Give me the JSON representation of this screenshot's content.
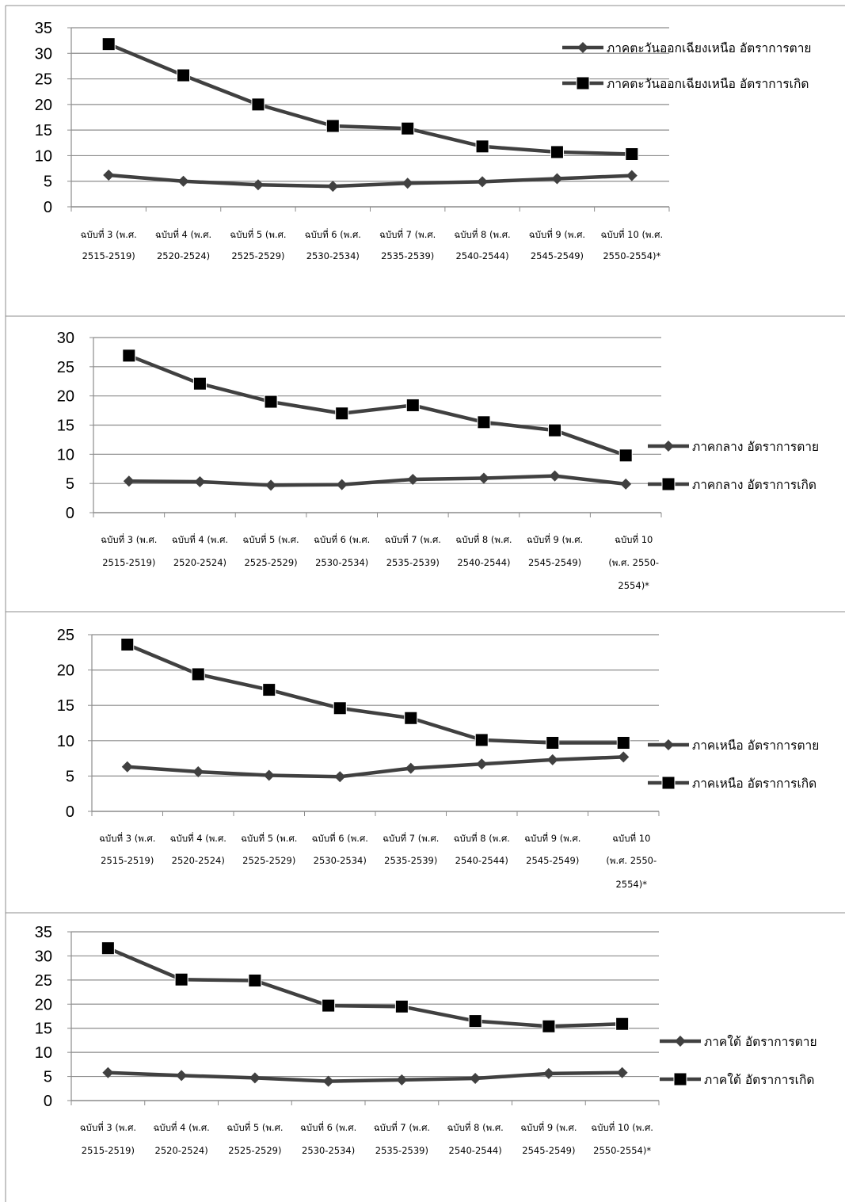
{
  "colors": {
    "series_line": "#404040",
    "grid": "#8c8c8c",
    "marker": "#000000",
    "panel_border": "#8c8c8c"
  },
  "chart_data": [
    {
      "type": "line",
      "categories": [
        [
          "ฉบับที่ 3 (พ.ศ.",
          "2515-2519)"
        ],
        [
          "ฉบับที่ 4 (พ.ศ.",
          "2520-2524)"
        ],
        [
          "ฉบับที่ 5 (พ.ศ.",
          "2525-2529)"
        ],
        [
          "ฉบับที่ 6 (พ.ศ.",
          "2530-2534)"
        ],
        [
          "ฉบับที่ 7 (พ.ศ.",
          "2535-2539)"
        ],
        [
          "ฉบับที่ 8 (พ.ศ.",
          "2540-2544)"
        ],
        [
          "ฉบับที่ 9 (พ.ศ.",
          "2545-2549)"
        ],
        [
          "ฉบับที่ 10 (พ.ศ.",
          "2550-2554)*"
        ]
      ],
      "ylim": [
        0,
        35
      ],
      "yticks": [
        0,
        5,
        10,
        15,
        20,
        25,
        30,
        35
      ],
      "grid": true,
      "legend_position": "top-right",
      "series": [
        {
          "name": "ภาคตะวันออกเฉียงเหนือ อัตราการตาย",
          "marker": "diamond",
          "values": [
            6.2,
            5.0,
            4.3,
            4.0,
            4.6,
            4.9,
            5.5,
            6.1
          ]
        },
        {
          "name": "ภาคตะวันออกเฉียงเหนือ อัตราการเกิด",
          "marker": "square",
          "values": [
            31.8,
            25.7,
            20.0,
            15.8,
            15.3,
            11.8,
            10.7,
            10.3
          ]
        }
      ]
    },
    {
      "type": "line",
      "categories": [
        [
          "ฉบับที่ 3 (พ.ศ.",
          "2515-2519)"
        ],
        [
          "ฉบับที่ 4 (พ.ศ.",
          "2520-2524)"
        ],
        [
          "ฉบับที่ 5 (พ.ศ.",
          "2525-2529)"
        ],
        [
          "ฉบับที่ 6 (พ.ศ.",
          "2530-2534)"
        ],
        [
          "ฉบับที่ 7 (พ.ศ.",
          "2535-2539)"
        ],
        [
          "ฉบับที่ 8 (พ.ศ.",
          "2540-2544)"
        ],
        [
          "ฉบับที่ 9 (พ.ศ.",
          "2545-2549)"
        ],
        [
          "ฉบับที่ 10",
          "(พ.ศ. 2550-",
          "2554)*"
        ]
      ],
      "ylim": [
        0,
        30
      ],
      "yticks": [
        0,
        5,
        10,
        15,
        20,
        25,
        30
      ],
      "grid": true,
      "legend_position": "right",
      "series": [
        {
          "name": "ภาคกลาง อัตราการตาย",
          "marker": "diamond",
          "values": [
            5.4,
            5.3,
            4.7,
            4.8,
            5.7,
            5.9,
            6.3,
            4.9
          ]
        },
        {
          "name": "ภาคกลาง อัตราการเกิด",
          "marker": "square",
          "values": [
            26.9,
            22.1,
            19.0,
            17.0,
            18.4,
            15.5,
            14.1,
            9.8
          ]
        }
      ]
    },
    {
      "type": "line",
      "categories": [
        [
          "ฉบับที่ 3 (พ.ศ.",
          "2515-2519)"
        ],
        [
          "ฉบับที่ 4 (พ.ศ.",
          "2520-2524)"
        ],
        [
          "ฉบับที่ 5 (พ.ศ.",
          "2525-2529)"
        ],
        [
          "ฉบับที่ 6 (พ.ศ.",
          "2530-2534)"
        ],
        [
          "ฉบับที่ 7 (พ.ศ.",
          "2535-2539)"
        ],
        [
          "ฉบับที่ 8 (พ.ศ.",
          "2540-2544)"
        ],
        [
          "ฉบับที่ 9 (พ.ศ.",
          "2545-2549)"
        ],
        [
          "ฉบับที่ 10",
          "(พ.ศ. 2550-",
          "2554)*"
        ]
      ],
      "ylim": [
        0,
        25
      ],
      "yticks": [
        0,
        5,
        10,
        15,
        20,
        25
      ],
      "grid": true,
      "legend_position": "right",
      "series": [
        {
          "name": "ภาคเหนือ อัตราการตาย",
          "marker": "diamond",
          "values": [
            6.3,
            5.6,
            5.1,
            4.9,
            6.1,
            6.7,
            7.3,
            7.7
          ]
        },
        {
          "name": "ภาคเหนือ อัตราการเกิด",
          "marker": "square",
          "values": [
            23.6,
            19.4,
            17.2,
            14.6,
            13.2,
            10.1,
            9.7,
            9.7
          ]
        }
      ]
    },
    {
      "type": "line",
      "categories": [
        [
          "ฉบับที่ 3 (พ.ศ.",
          "2515-2519)"
        ],
        [
          "ฉบับที่ 4 (พ.ศ.",
          "2520-2524)"
        ],
        [
          "ฉบับที่ 5 (พ.ศ.",
          "2525-2529)"
        ],
        [
          "ฉบับที่ 6 (พ.ศ.",
          "2530-2534)"
        ],
        [
          "ฉบับที่ 7 (พ.ศ.",
          "2535-2539)"
        ],
        [
          "ฉบับที่ 8 (พ.ศ.",
          "2540-2544)"
        ],
        [
          "ฉบับที่ 9 (พ.ศ.",
          "2545-2549)"
        ],
        [
          "ฉบับที่ 10 (พ.ศ.",
          "2550-2554)*"
        ]
      ],
      "ylim": [
        0,
        35
      ],
      "yticks": [
        0,
        5,
        10,
        15,
        20,
        25,
        30,
        35
      ],
      "grid": true,
      "legend_position": "right",
      "series": [
        {
          "name": "ภาคใต้ อัตราการตาย",
          "marker": "diamond",
          "values": [
            5.8,
            5.2,
            4.7,
            4.0,
            4.3,
            4.6,
            5.6,
            5.8
          ]
        },
        {
          "name": "ภาคใต้ อัตราการเกิด",
          "marker": "square",
          "values": [
            31.6,
            25.1,
            24.9,
            19.7,
            19.5,
            16.5,
            15.4,
            15.9
          ]
        }
      ]
    }
  ]
}
